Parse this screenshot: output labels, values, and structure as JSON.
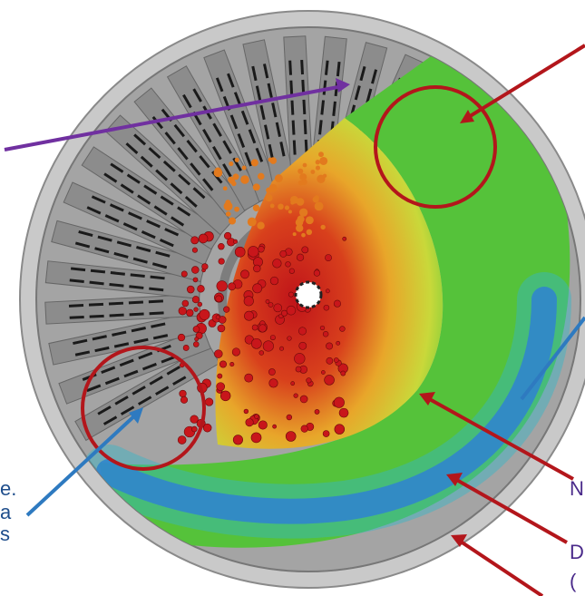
{
  "left_labels": [
    "e.",
    "a",
    "s"
  ],
  "right_labels": [
    "N",
    "D",
    "("
  ]
}
